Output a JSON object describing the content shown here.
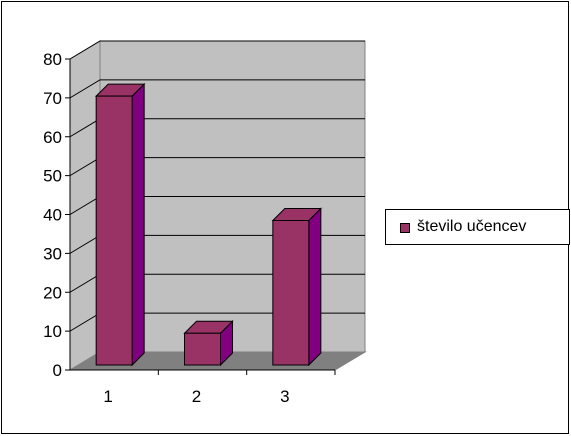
{
  "chart_data": {
    "type": "bar",
    "categories": [
      "1",
      "2",
      "3"
    ],
    "series": [
      {
        "name": "število učencev",
        "values": [
          72,
          11,
          40
        ]
      }
    ],
    "ylim": [
      0,
      80
    ],
    "yticks": [
      "0",
      "10",
      "20",
      "30",
      "40",
      "50",
      "60",
      "70",
      "80"
    ],
    "grid": true,
    "legend_placement": "right",
    "style": "3d-column"
  },
  "colors": {
    "bar_front": "#993366",
    "bar_side": "#800080",
    "bar_top": "#993366",
    "wall": "#c0c0c0",
    "floor": "#808080"
  }
}
